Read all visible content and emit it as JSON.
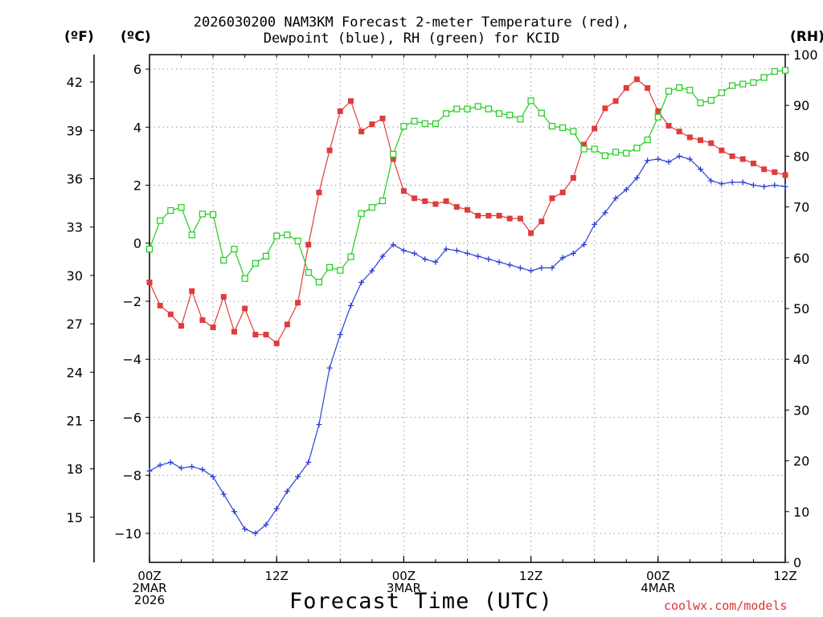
{
  "chart_data": {
    "type": "line",
    "title_line1": "2026030200 NAM3KM Forecast 2-meter Temperature (red),",
    "title_line2": "Dewpoint (blue), RH (green) for KCID",
    "left_axis_f_label": "(ºF)",
    "left_axis_c_label": "(ºC)",
    "right_axis_label": "(RH)",
    "xlabel": "Forecast Time (UTC)",
    "watermark": "coolwx.com/models",
    "x_hours_range": [
      0,
      60
    ],
    "c_ylim": [
      -11,
      6.5
    ],
    "rh_ylim": [
      0,
      100
    ],
    "c_ticks": [
      6,
      4,
      2,
      0,
      -2,
      -4,
      -6,
      -8,
      -10
    ],
    "f_ticks": [
      42,
      39,
      36,
      33,
      30,
      27,
      24,
      21,
      18,
      15
    ],
    "rh_ticks": [
      100,
      90,
      80,
      70,
      60,
      50,
      40,
      30,
      20,
      10,
      0
    ],
    "x_ticks": [
      {
        "hour": 0,
        "lines": [
          "00Z",
          "2MAR",
          "2026"
        ]
      },
      {
        "hour": 12,
        "lines": [
          "12Z"
        ]
      },
      {
        "hour": 24,
        "lines": [
          "00Z",
          "3MAR"
        ]
      },
      {
        "hour": 36,
        "lines": [
          "12Z"
        ]
      },
      {
        "hour": 48,
        "lines": [
          "00Z",
          "4MAR"
        ]
      },
      {
        "hour": 60,
        "lines": [
          "12Z"
        ]
      }
    ],
    "series": [
      {
        "name": "Temperature",
        "units": "C",
        "color": "#e03c3c",
        "marker": "filled-square",
        "hours": [
          0,
          1,
          2,
          3,
          4,
          5,
          6,
          7,
          8,
          9,
          10,
          11,
          12,
          13,
          14,
          15,
          16,
          17,
          18,
          19,
          20,
          21,
          22,
          23,
          24,
          25,
          26,
          27,
          28,
          29,
          30,
          31,
          32,
          33,
          34,
          35,
          36,
          37,
          38,
          39,
          40,
          41,
          42,
          43,
          44,
          45,
          46,
          47,
          48,
          49,
          50,
          51,
          52,
          53,
          54,
          55,
          56,
          57,
          58,
          59,
          60
        ],
        "values": [
          -1.35,
          -2.15,
          -2.45,
          -2.85,
          -1.65,
          -2.65,
          -2.9,
          -1.85,
          -3.05,
          -2.25,
          -3.15,
          -3.15,
          -3.45,
          -2.8,
          -2.05,
          -0.05,
          1.75,
          3.2,
          4.55,
          4.9,
          3.85,
          4.1,
          4.3,
          2.9,
          1.8,
          1.55,
          1.45,
          1.35,
          1.45,
          1.25,
          1.15,
          0.95,
          0.95,
          0.95,
          0.85,
          0.85,
          0.35,
          0.75,
          1.55,
          1.75,
          2.25,
          3.4,
          3.95,
          4.65,
          4.9,
          5.35,
          5.65,
          5.35,
          4.55,
          4.05,
          3.85,
          3.65,
          3.55,
          3.45,
          3.2,
          3.0,
          2.9,
          2.75,
          2.55,
          2.45,
          2.35
        ]
      },
      {
        "name": "Dewpoint",
        "units": "C",
        "color": "#2a3fd8",
        "marker": "plus",
        "hours": [
          0,
          1,
          2,
          3,
          4,
          5,
          6,
          7,
          8,
          9,
          10,
          11,
          12,
          13,
          14,
          15,
          16,
          17,
          18,
          19,
          20,
          21,
          22,
          23,
          24,
          25,
          26,
          27,
          28,
          29,
          30,
          31,
          32,
          33,
          34,
          35,
          36,
          37,
          38,
          39,
          40,
          41,
          42,
          43,
          44,
          45,
          46,
          47,
          48,
          49,
          50,
          51,
          52,
          53,
          54,
          55,
          56,
          57,
          58,
          59,
          60
        ],
        "values": [
          -7.85,
          -7.65,
          -7.55,
          -7.75,
          -7.7,
          -7.8,
          -8.05,
          -8.65,
          -9.25,
          -9.85,
          -10.0,
          -9.7,
          -9.15,
          -8.55,
          -8.05,
          -7.55,
          -6.25,
          -4.3,
          -3.15,
          -2.15,
          -1.35,
          -0.95,
          -0.45,
          -0.05,
          -0.25,
          -0.35,
          -0.55,
          -0.65,
          -0.2,
          -0.25,
          -0.35,
          -0.45,
          -0.55,
          -0.65,
          -0.75,
          -0.85,
          -0.95,
          -0.85,
          -0.85,
          -0.5,
          -0.35,
          -0.05,
          0.65,
          1.05,
          1.55,
          1.85,
          2.25,
          2.85,
          2.9,
          2.8,
          3.0,
          2.9,
          2.55,
          2.15,
          2.05,
          2.1,
          2.1,
          2.0,
          1.95,
          2.0,
          1.95
        ]
      },
      {
        "name": "RH",
        "units": "%",
        "color": "#1dcc1d",
        "marker": "open-square",
        "hours": [
          0,
          1,
          2,
          3,
          4,
          5,
          6,
          7,
          8,
          9,
          10,
          11,
          12,
          13,
          14,
          15,
          16,
          17,
          18,
          19,
          20,
          21,
          22,
          23,
          24,
          25,
          26,
          27,
          28,
          29,
          30,
          31,
          32,
          33,
          34,
          35,
          36,
          37,
          38,
          39,
          40,
          41,
          42,
          43,
          44,
          45,
          46,
          47,
          48,
          49,
          50,
          51,
          52,
          53,
          54,
          55,
          56,
          57,
          58,
          59,
          60
        ],
        "values": [
          61.7,
          67.3,
          69.3,
          69.9,
          64.5,
          68.6,
          68.5,
          59.5,
          61.7,
          55.9,
          58.9,
          60.3,
          64.3,
          64.5,
          63.3,
          57.1,
          55.2,
          58.1,
          57.5,
          60.2,
          68.7,
          69.9,
          71.2,
          80.4,
          85.9,
          86.9,
          86.4,
          86.4,
          88.4,
          89.3,
          89.3,
          89.8,
          89.3,
          88.4,
          88.1,
          87.3,
          90.9,
          88.5,
          85.9,
          85.6,
          84.9,
          81.4,
          81.4,
          80.1,
          80.8,
          80.6,
          81.6,
          83.2,
          87.7,
          92.8,
          93.5,
          93.0,
          90.5,
          91.0,
          92.5,
          93.9,
          94.2,
          94.5,
          95.5,
          96.7,
          96.9
        ]
      }
    ]
  }
}
